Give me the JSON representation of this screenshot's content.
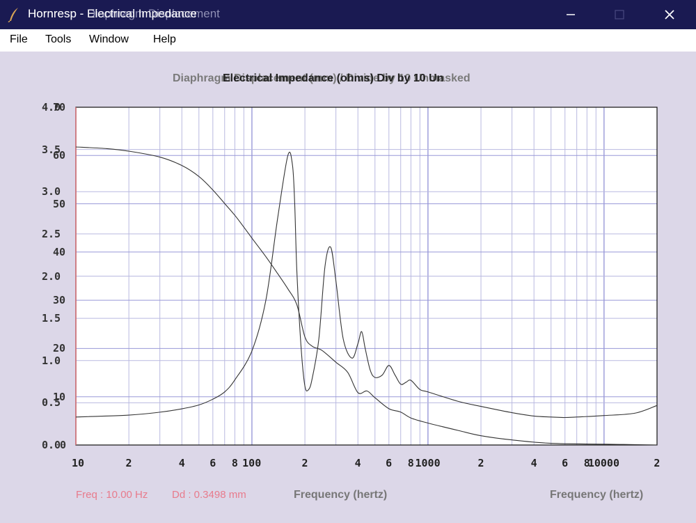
{
  "window": {
    "title_back": "Hornresp - Diaphragm Displacement",
    "title_front": "Hornresp - Electrical Impedance",
    "icon": "feather-icon",
    "controls": {
      "minimize": "minimize-icon",
      "maximize": "maximize-icon",
      "close": "close-icon"
    }
  },
  "menu": {
    "items": [
      "File",
      "Tools",
      "Window",
      "Help"
    ]
  },
  "chart": {
    "title_back": "Diaphragm Displacement (mm)  /  Divide by 10  Unmasked",
    "title_front": "Electrical Impedance (ohms)  Div  by 10  Un",
    "status_freq": "Freq : 10.00 Hz",
    "status_dd": "Dd : 0.3498 mm",
    "xlabel_left": "Frequency (hertz)",
    "xlabel_right": "Frequency (hertz)",
    "colors": {
      "curve": "#333333",
      "grid": "#b9b9e0",
      "major_grid": "#9898d8",
      "left_edge": "#e07070",
      "background": "#ffffff"
    }
  },
  "chart_data": {
    "type": "line",
    "x_scale": "log",
    "xlim": [
      10,
      20000
    ],
    "x_tick_labels": [
      "10",
      "2",
      "4",
      "6",
      "8",
      "100",
      "2",
      "4",
      "6",
      "8",
      "1000",
      "2",
      "4",
      "6",
      "8",
      "10000",
      "2"
    ],
    "y_left_ticks": [
      "0.0",
      "0.5",
      "1.0",
      "1.5",
      "2.0",
      "2.5",
      "3.0",
      "3.5",
      "4.0"
    ],
    "y_right_ticks": [
      "0",
      "10",
      "20",
      "30",
      "40",
      "50",
      "60",
      "70"
    ],
    "grid": true,
    "series": [
      {
        "x": [
          10,
          15,
          20,
          30,
          40,
          50,
          60,
          70,
          80,
          90,
          100,
          120,
          140,
          160,
          180,
          200,
          220,
          250,
          300,
          350,
          400,
          450,
          500,
          600,
          700,
          800,
          1000,
          1500,
          2000,
          3000,
          5000,
          10000,
          20000
        ],
        "y": [
          3.53,
          3.51,
          3.48,
          3.41,
          3.31,
          3.18,
          3.02,
          2.86,
          2.72,
          2.58,
          2.45,
          2.23,
          2.03,
          1.85,
          1.66,
          1.28,
          1.17,
          1.12,
          0.98,
          0.86,
          0.62,
          0.64,
          0.56,
          0.43,
          0.39,
          0.32,
          0.26,
          0.17,
          0.11,
          0.06,
          0.02,
          0.01,
          0.0
        ]
      },
      {
        "x": [
          10,
          20,
          30,
          40,
          50,
          60,
          70,
          80,
          100,
          120,
          140,
          160,
          170,
          175,
          180,
          190,
          200,
          210,
          220,
          240,
          260,
          280,
          300,
          330,
          370,
          400,
          420,
          440,
          470,
          500,
          550,
          600,
          650,
          700,
          750,
          800,
          900,
          1000,
          1500,
          2000,
          3000,
          4000,
          5000,
          6000,
          8000,
          10000,
          15000,
          20000
        ],
        "y": [
          5.8,
          6.2,
          6.8,
          7.5,
          8.3,
          9.5,
          11.0,
          13.5,
          19.5,
          30.0,
          47.0,
          60.0,
          58.0,
          50.0,
          36.0,
          20.5,
          12.2,
          11.5,
          13.8,
          22.0,
          37.0,
          41.0,
          34.0,
          22.0,
          18.0,
          21.0,
          23.5,
          20.0,
          15.5,
          14.0,
          14.5,
          16.5,
          14.5,
          12.6,
          13.0,
          13.4,
          11.5,
          11.0,
          9.0,
          8.0,
          6.7,
          6.0,
          5.8,
          5.7,
          5.9,
          6.1,
          6.6,
          8.2
        ]
      }
    ]
  }
}
